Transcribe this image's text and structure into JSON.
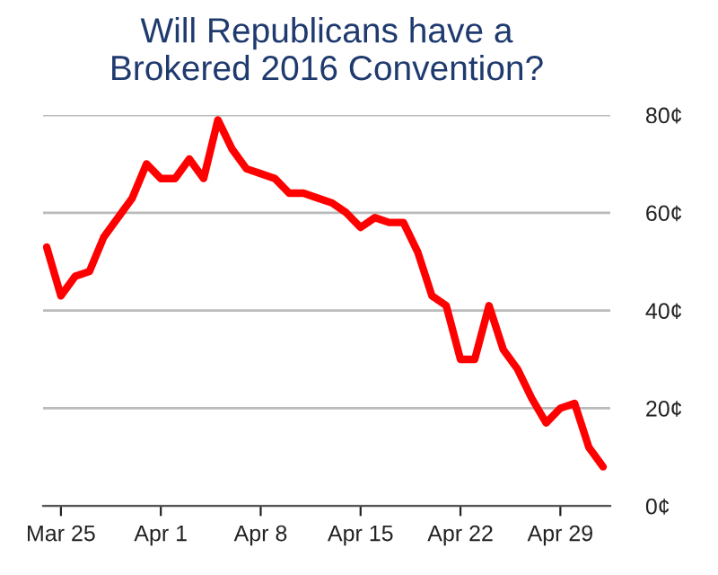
{
  "chart_data": {
    "type": "line",
    "title": "Will Republicans have a\nBrokered 2016 Convention?",
    "x": [
      "2016-03-24",
      "2016-03-25",
      "2016-03-26",
      "2016-03-27",
      "2016-03-28",
      "2016-03-29",
      "2016-03-30",
      "2016-03-31",
      "2016-04-01",
      "2016-04-02",
      "2016-04-03",
      "2016-04-04",
      "2016-04-05",
      "2016-04-06",
      "2016-04-07",
      "2016-04-08",
      "2016-04-09",
      "2016-04-10",
      "2016-04-11",
      "2016-04-12",
      "2016-04-13",
      "2016-04-14",
      "2016-04-15",
      "2016-04-16",
      "2016-04-17",
      "2016-04-18",
      "2016-04-19",
      "2016-04-20",
      "2016-04-21",
      "2016-04-22",
      "2016-04-23",
      "2016-04-24",
      "2016-04-25",
      "2016-04-26",
      "2016-04-27",
      "2016-04-28",
      "2016-04-29",
      "2016-04-30",
      "2016-05-01",
      "2016-05-02"
    ],
    "series": [
      {
        "color": "#ff0000",
        "values": [
          53,
          43,
          47,
          48,
          55,
          59,
          63,
          70,
          67,
          67,
          71,
          67,
          79,
          73,
          69,
          68,
          67,
          64,
          64,
          63,
          62,
          60,
          57,
          59,
          58,
          58,
          52,
          43,
          41,
          30,
          30,
          41,
          32,
          28,
          22,
          17,
          20,
          21,
          12,
          8
        ]
      }
    ],
    "xlim": [
      "2016-03-23T18:00",
      "2016-05-02T12:00"
    ],
    "xticks": [
      {
        "value": "2016-03-25",
        "label": "Mar 25"
      },
      {
        "value": "2016-04-01",
        "label": "Apr 1"
      },
      {
        "value": "2016-04-08",
        "label": "Apr 8"
      },
      {
        "value": "2016-04-15",
        "label": "Apr 15"
      },
      {
        "value": "2016-04-22",
        "label": "Apr 22"
      },
      {
        "value": "2016-04-29",
        "label": "Apr 29"
      }
    ],
    "ylim": [
      0,
      80
    ],
    "yticks": [
      {
        "value": 0,
        "label": "0¢"
      },
      {
        "value": 20,
        "label": "20¢"
      },
      {
        "value": 40,
        "label": "40¢"
      },
      {
        "value": 60,
        "label": "60¢"
      },
      {
        "value": 80,
        "label": "80¢"
      }
    ],
    "grid": "y",
    "marker": "none",
    "line_style": "solid"
  }
}
